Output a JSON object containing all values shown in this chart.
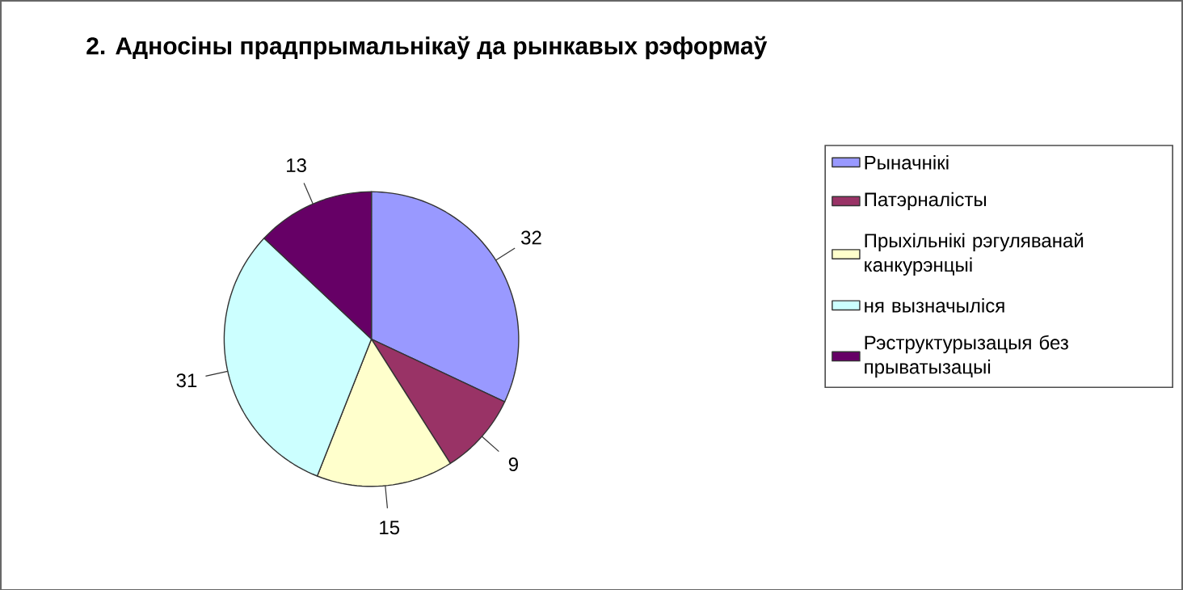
{
  "chart_data": {
    "type": "pie",
    "title": "2. Адносіны прадпрымальнікаў да рынкавых рэформаў",
    "categories": [
      "Рыначнікі",
      "Патэрналісты",
      "Прыхільнікі рэгуляванай канкурэнцыі",
      "ня вызначыліся",
      "Рэструктурызацыя без прыватызацыі"
    ],
    "values": [
      32,
      9,
      15,
      31,
      13
    ],
    "colors": [
      "#9999ff",
      "#993366",
      "#ffffcc",
      "#ccffff",
      "#660066"
    ],
    "data_labels": true,
    "legend": "right"
  }
}
